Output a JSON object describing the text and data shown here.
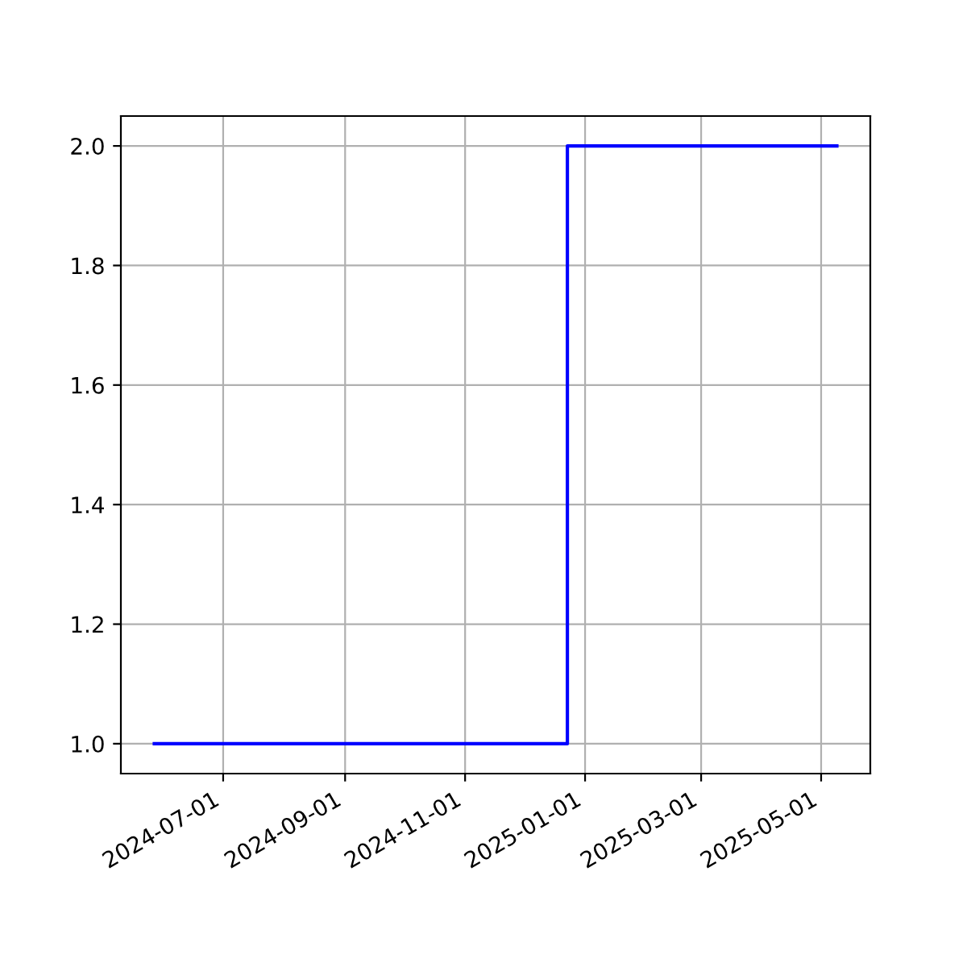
{
  "chart_data": {
    "type": "step",
    "x": [
      "2024-05-27",
      "2024-12-23",
      "2025-05-09"
    ],
    "series": [
      {
        "color": "#0000ff",
        "values": [
          1,
          2,
          2
        ]
      }
    ],
    "xlim": [
      "2024-05-10",
      "2025-05-26"
    ],
    "xticks": [
      "2024-07-01",
      "2024-09-01",
      "2024-11-01",
      "2025-01-01",
      "2025-03-01",
      "2025-05-01"
    ],
    "ylim": [
      0.95,
      2.05
    ],
    "yticks": [
      {
        "value": 1.0,
        "label": "1.0"
      },
      {
        "value": 1.2,
        "label": "1.2"
      },
      {
        "value": 1.4,
        "label": "1.4"
      },
      {
        "value": 1.6,
        "label": "1.6"
      },
      {
        "value": 1.8,
        "label": "1.8"
      },
      {
        "value": 2.0,
        "label": "2.0"
      }
    ],
    "grid": true
  }
}
